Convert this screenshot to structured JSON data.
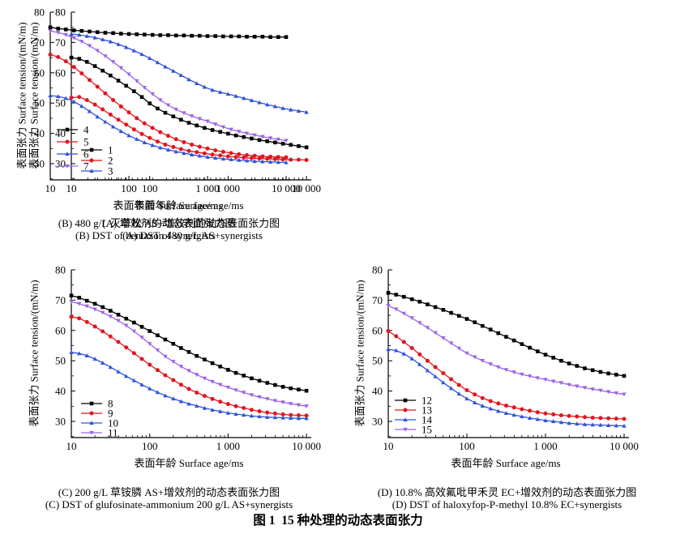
{
  "figure_title": "图 1  15 种处理的动态表面张力",
  "chart_data": [
    {
      "type": "line",
      "panel": "A",
      "caption_zh": "(A) 增效剂的动态表面张力图",
      "caption_en": "(A) DST of synergists",
      "xlabel": "表面年龄 Surface age/ms",
      "ylabel": "表面张力 Surface tension/(mN/m)",
      "xscale": "log",
      "xlim": [
        10,
        10000
      ],
      "ylim": [
        24.6,
        80
      ],
      "grid": false,
      "legend_position": "lower-left",
      "y_ticks": [
        30,
        40,
        50,
        60,
        70,
        80
      ],
      "x_tick_labels": [
        "10",
        "100",
        "1 000",
        "10 000"
      ],
      "x": [
        10,
        12.6,
        15.8,
        20,
        25.1,
        31.6,
        39.8,
        50.1,
        63.1,
        79.4,
        100,
        126,
        158,
        200,
        251,
        316,
        398,
        501,
        631,
        794,
        1000,
        1259,
        1585,
        1995,
        2512,
        3162,
        3981,
        5012,
        6310,
        7943,
        10000
      ],
      "series": [
        {
          "name": "1",
          "color": "#000000",
          "marker": "square",
          "values": [
            65.0,
            64.6,
            63.6,
            62.2,
            60.7,
            59.1,
            57.4,
            55.7,
            53.9,
            52.0,
            49.9,
            48.2,
            46.8,
            45.6,
            44.5,
            43.5,
            42.6,
            41.8,
            41.1,
            40.5,
            39.9,
            39.3,
            38.8,
            38.3,
            37.8,
            37.4,
            37.0,
            36.6,
            36.2,
            35.8,
            35.4
          ]
        },
        {
          "name": "2",
          "color": "#e0161e",
          "marker": "circle",
          "values": [
            51.8,
            52.0,
            51.0,
            49.5,
            47.9,
            46.2,
            44.5,
            42.9,
            41.3,
            39.8,
            38.5,
            37.3,
            36.3,
            35.5,
            34.8,
            34.2,
            33.8,
            33.4,
            33.0,
            32.7,
            32.4,
            32.2,
            32.0,
            31.8,
            31.7,
            31.6,
            31.5,
            31.4,
            31.3,
            31.3,
            31.2
          ]
        },
        {
          "name": "3",
          "color": "#2f52d9",
          "marker": "triangle-up",
          "values": [
            72.8,
            72.5,
            72.1,
            71.6,
            71.0,
            70.3,
            69.4,
            68.4,
            67.3,
            66.1,
            64.8,
            63.4,
            62.0,
            60.6,
            59.2,
            57.8,
            56.5,
            55.3,
            54.3,
            53.6,
            53.0,
            52.3,
            51.6,
            50.9,
            50.2,
            49.5,
            48.9,
            48.3,
            47.8,
            47.4,
            47.0
          ]
        }
      ]
    },
    {
      "type": "line",
      "panel": "B",
      "caption_zh": "(B) 480 g/L 灭草松 AS+增效剂的动态表面张力图",
      "caption_en": "(B) DST of bentazon 480 g/L AS+synergists",
      "xlabel": "表面年龄 Surface age/ms",
      "ylabel": "表面张力 Surface tension/(mN/m)",
      "xscale": "log",
      "xlim": [
        10,
        10000
      ],
      "ylim": [
        24.6,
        80
      ],
      "grid": false,
      "legend_position": "lower-left",
      "y_ticks": [
        30,
        40,
        50,
        60,
        70,
        80
      ],
      "x_tick_labels": [
        "10",
        "100",
        "1 000",
        "10 000"
      ],
      "x": [
        10,
        12.6,
        15.8,
        20,
        25.1,
        31.6,
        39.8,
        50.1,
        63.1,
        79.4,
        100,
        126,
        158,
        200,
        251,
        316,
        398,
        501,
        631,
        794,
        1000,
        1259,
        1585,
        1995,
        2512,
        3162,
        3981,
        5012,
        6310,
        7943,
        10000
      ],
      "series": [
        {
          "name": "4",
          "color": "#000000",
          "marker": "square",
          "values": [
            75.0,
            74.6,
            74.3,
            74.0,
            73.8,
            73.6,
            73.4,
            73.2,
            73.1,
            72.9,
            72.8,
            72.7,
            72.6,
            72.5,
            72.4,
            72.4,
            72.3,
            72.3,
            72.2,
            72.2,
            72.1,
            72.1,
            72.0,
            72.0,
            72.0,
            71.9,
            71.9,
            71.9,
            71.8,
            71.8,
            71.8
          ]
        },
        {
          "name": "5",
          "color": "#e0161e",
          "marker": "circle",
          "values": [
            66.0,
            65.2,
            63.8,
            61.9,
            59.8,
            57.6,
            55.4,
            53.2,
            51.0,
            48.9,
            46.9,
            45.0,
            43.3,
            41.8,
            40.4,
            39.2,
            38.1,
            37.1,
            36.3,
            35.6,
            35.0,
            34.4,
            33.9,
            33.5,
            33.1,
            32.8,
            32.6,
            32.4,
            32.3,
            32.2,
            32.1
          ]
        },
        {
          "name": "6",
          "color": "#2f52d9",
          "marker": "triangle-up",
          "values": [
            52.5,
            52.2,
            51.6,
            50.5,
            49.0,
            47.3,
            45.5,
            43.8,
            42.2,
            40.7,
            39.3,
            38.1,
            37.0,
            36.1,
            35.3,
            34.6,
            34.0,
            33.5,
            33.0,
            32.6,
            32.2,
            31.9,
            31.6,
            31.4,
            31.2,
            31.0,
            30.8,
            30.7,
            30.6,
            30.5,
            30.4
          ]
        },
        {
          "name": "7",
          "color": "#9b64e6",
          "marker": "triangle-down",
          "values": [
            73.8,
            73.3,
            72.5,
            71.5,
            70.3,
            68.9,
            67.3,
            65.5,
            63.6,
            61.6,
            59.5,
            57.3,
            55.1,
            53.0,
            51.0,
            49.3,
            47.9,
            46.7,
            45.7,
            44.8,
            44.0,
            43.0,
            42.1,
            41.3,
            40.6,
            40.0,
            39.4,
            38.9,
            38.4,
            38.0,
            37.6
          ]
        }
      ]
    },
    {
      "type": "line",
      "panel": "C",
      "caption_zh": "(C) 200 g/L 草铵膦 AS+增效剂的动态表面张力图",
      "caption_en": "(C) DST of glufosinate-ammonium 200 g/L AS+synergists",
      "xlabel": "表面年龄 Surface age/ms",
      "ylabel": "表面张力 Surface tension/(mN/m)",
      "xscale": "log",
      "xlim": [
        10,
        10000
      ],
      "ylim": [
        24.6,
        80
      ],
      "grid": false,
      "legend_position": "lower-left",
      "y_ticks": [
        30,
        40,
        50,
        60,
        70,
        80
      ],
      "x_tick_labels": [
        "10",
        "100",
        "1 000",
        "10 000"
      ],
      "x": [
        10,
        12.6,
        15.8,
        20,
        25.1,
        31.6,
        39.8,
        50.1,
        63.1,
        79.4,
        100,
        126,
        158,
        200,
        251,
        316,
        398,
        501,
        631,
        794,
        1000,
        1259,
        1585,
        1995,
        2512,
        3162,
        3981,
        5012,
        6310,
        7943,
        10000
      ],
      "series": [
        {
          "name": "8",
          "color": "#000000",
          "marker": "square",
          "values": [
            71.5,
            70.8,
            69.8,
            68.8,
            67.7,
            66.5,
            65.2,
            63.9,
            62.6,
            61.2,
            59.8,
            58.4,
            57.0,
            55.6,
            54.2,
            52.9,
            51.6,
            50.4,
            49.2,
            48.1,
            47.0,
            46.0,
            45.1,
            44.2,
            43.4,
            42.7,
            42.0,
            41.4,
            40.9,
            40.5,
            40.1
          ]
        },
        {
          "name": "9",
          "color": "#e0161e",
          "marker": "circle",
          "values": [
            64.5,
            64.0,
            62.8,
            61.3,
            59.7,
            58.0,
            56.2,
            54.4,
            52.5,
            50.6,
            48.7,
            46.9,
            45.2,
            43.6,
            42.1,
            40.7,
            39.5,
            38.4,
            37.4,
            36.5,
            35.7,
            35.0,
            34.4,
            33.8,
            33.3,
            32.9,
            32.6,
            32.3,
            32.1,
            32.0,
            31.9
          ]
        },
        {
          "name": "10",
          "color": "#2f52d9",
          "marker": "triangle-up",
          "values": [
            52.8,
            52.4,
            51.7,
            50.6,
            49.3,
            47.9,
            46.4,
            44.9,
            43.5,
            42.1,
            40.8,
            39.6,
            38.5,
            37.5,
            36.6,
            35.8,
            35.1,
            34.4,
            33.8,
            33.3,
            32.8,
            32.4,
            32.1,
            31.8,
            31.6,
            31.4,
            31.3,
            31.2,
            31.1,
            31.0,
            31.0
          ]
        },
        {
          "name": "11",
          "color": "#9b64e6",
          "marker": "triangle-down",
          "values": [
            69.5,
            68.8,
            68.0,
            67.0,
            65.9,
            64.6,
            63.2,
            61.6,
            59.7,
            57.7,
            55.6,
            53.5,
            51.4,
            49.7,
            48.1,
            46.7,
            45.4,
            44.2,
            43.1,
            42.1,
            41.2,
            40.3,
            39.5,
            38.7,
            38.0,
            37.4,
            36.8,
            36.3,
            35.8,
            35.4,
            35.0
          ]
        }
      ]
    },
    {
      "type": "line",
      "panel": "D",
      "caption_zh": "(D) 10.8% 高效氟吡甲禾灵 EC+增效剂的动态表面张力图",
      "caption_en": "(D) DST of haloxyfop-P-methyl 10.8% EC+synergists",
      "xlabel": "表面年龄 Surface age/ms",
      "ylabel": "表面张力 Surface tension/(mN/m)",
      "xscale": "log",
      "xlim": [
        10,
        10000
      ],
      "ylim": [
        24.6,
        80
      ],
      "grid": false,
      "legend_position": "lower-left",
      "y_ticks": [
        30,
        40,
        50,
        60,
        70,
        80
      ],
      "x_tick_labels": [
        "10",
        "100",
        "1 000",
        "10 000"
      ],
      "x": [
        10,
        12.6,
        15.8,
        20,
        25.1,
        31.6,
        39.8,
        50.1,
        63.1,
        79.4,
        100,
        126,
        158,
        200,
        251,
        316,
        398,
        501,
        631,
        794,
        1000,
        1259,
        1585,
        1995,
        2512,
        3162,
        3981,
        5012,
        6310,
        7943,
        10000
      ],
      "series": [
        {
          "name": "12",
          "color": "#000000",
          "marker": "square",
          "values": [
            72.4,
            71.8,
            71.1,
            70.3,
            69.5,
            68.6,
            67.7,
            66.8,
            65.8,
            64.8,
            63.8,
            62.7,
            61.5,
            60.3,
            59.1,
            57.9,
            56.7,
            55.5,
            54.3,
            53.1,
            52.0,
            51.0,
            50.0,
            49.1,
            48.3,
            47.5,
            46.9,
            46.3,
            45.8,
            45.4,
            45.0
          ]
        },
        {
          "name": "13",
          "color": "#e0161e",
          "marker": "circle",
          "values": [
            59.8,
            58.1,
            56.2,
            54.2,
            52.1,
            50.0,
            47.9,
            45.9,
            43.9,
            42.0,
            40.3,
            38.9,
            37.7,
            36.7,
            35.9,
            35.2,
            34.6,
            34.0,
            33.5,
            33.0,
            32.6,
            32.3,
            32.0,
            31.8,
            31.6,
            31.4,
            31.2,
            31.1,
            31.0,
            30.9,
            30.8
          ]
        },
        {
          "name": "14",
          "color": "#2f52d9",
          "marker": "triangle-up",
          "values": [
            53.8,
            53.4,
            52.3,
            50.7,
            48.8,
            46.8,
            44.8,
            42.8,
            40.9,
            39.1,
            37.5,
            36.2,
            35.1,
            34.2,
            33.4,
            32.7,
            32.1,
            31.6,
            31.1,
            30.7,
            30.3,
            30.0,
            29.7,
            29.4,
            29.2,
            29.0,
            28.9,
            28.8,
            28.7,
            28.6,
            28.5
          ]
        },
        {
          "name": "15",
          "color": "#9b64e6",
          "marker": "triangle-down",
          "values": [
            68.2,
            67.0,
            65.6,
            64.1,
            62.5,
            60.9,
            59.2,
            57.5,
            55.8,
            54.1,
            52.5,
            51.2,
            50.0,
            48.9,
            47.9,
            47.0,
            46.2,
            45.5,
            44.9,
            44.3,
            43.8,
            43.2,
            42.7,
            42.1,
            41.6,
            41.1,
            40.6,
            40.2,
            39.7,
            39.3,
            38.9
          ]
        }
      ]
    }
  ]
}
